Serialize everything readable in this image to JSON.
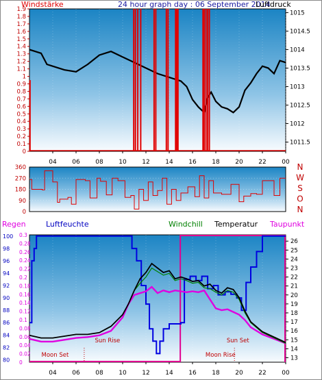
{
  "header": {
    "left": "Windstärke",
    "center": "24 hour graph day : 06 September 2014",
    "right": "Luftdruck"
  },
  "colors": {
    "background": "#ffffff",
    "plot_top": "#1e88c8",
    "plot_bottom": "#f4f8fc",
    "wind_red": "#e00000",
    "pressure_black": "#000000",
    "humidity_blue": "#0000e0",
    "dewpoint_magenta": "#e000e0",
    "windchill_green": "#008000",
    "regen_red": "#e000e0",
    "moon_red": "#c00000"
  },
  "time_axis_labels": [
    "04",
    "06",
    "08",
    "10",
    "12",
    "14",
    "16",
    "18",
    "20",
    "22",
    "00"
  ],
  "chart_data": [
    {
      "type": "line",
      "title": "24 hour graph day : 06 September 2014",
      "left_axis_label": "Windstärke",
      "right_axis_label": "Luftdruck",
      "left_ticks": [
        "0",
        "0.1",
        "0.2",
        "0.3",
        "0.4",
        "0.5",
        "0.6",
        "0.7",
        "0.8",
        "0.9",
        "1",
        "1.1",
        "1.2",
        "1.3",
        "1.4",
        "1.5",
        "1.6",
        "1.7",
        "1.8",
        "1.9"
      ],
      "right_ticks": [
        "1011.5",
        "1012",
        "1012.5",
        "1013",
        "1013.5",
        "1014",
        "1014.5",
        "1015"
      ],
      "left_ylim": [
        0,
        1.9
      ],
      "right_ylim": [
        1011.25,
        1015.1
      ],
      "xlim_hours": [
        2,
        24
      ],
      "series": [
        {
          "name": "Luftdruck",
          "axis": "right",
          "style": "line",
          "x": [
            2,
            3,
            3.5,
            4,
            5,
            6,
            7,
            8,
            9,
            10,
            11,
            12,
            13,
            14,
            15,
            15.5,
            16,
            16.5,
            17,
            17.3,
            17.6,
            18,
            18.5,
            19,
            19.5,
            20,
            20.5,
            21,
            21.5,
            22,
            22.5,
            23,
            23.5,
            24
          ],
          "y": [
            1014,
            1013.9,
            1013.6,
            1013.55,
            1013.45,
            1013.4,
            1013.6,
            1013.85,
            1013.95,
            1013.8,
            1013.65,
            1013.5,
            1013.35,
            1013.25,
            1013.15,
            1013,
            1012.65,
            1012.45,
            1012.3,
            1012.7,
            1012.85,
            1012.6,
            1012.45,
            1012.4,
            1012.3,
            1012.45,
            1012.9,
            1013.1,
            1013.35,
            1013.55,
            1013.5,
            1013.35,
            1013.7,
            1013.65
          ]
        },
        {
          "name": "Windstärke",
          "axis": "left",
          "style": "spikes",
          "x": [
            2.05,
            10.95,
            11.1,
            11.3,
            11.55,
            12.7,
            12.85,
            13.75,
            13.9,
            14.55,
            14.65,
            14.75,
            16.9,
            17.0,
            17.15,
            17.3,
            17.45
          ],
          "y": [
            0.95,
            1.95,
            1.95,
            1.95,
            1.95,
            1.95,
            1.95,
            1.95,
            1.95,
            1.95,
            1.95,
            1.95,
            1.95,
            1.95,
            1.95,
            1.95,
            1.95
          ]
        }
      ]
    },
    {
      "type": "line",
      "title": "",
      "left_ticks": [
        "0",
        "90",
        "180",
        "270",
        "360"
      ],
      "right_labels": [
        "N",
        "W",
        "S",
        "O",
        "N"
      ],
      "ylim": [
        0,
        360
      ],
      "xlim_hours": [
        2,
        24
      ],
      "series": [
        {
          "name": "",
          "style": "step",
          "x": [
            2,
            2.2,
            3.1,
            3.3,
            4.0,
            4.4,
            4.6,
            5.3,
            5.6,
            6.0,
            6.8,
            7.2,
            7.8,
            8.1,
            8.6,
            9.1,
            9.6,
            10.2,
            10.7,
            11.0,
            11.4,
            11.8,
            12.2,
            12.6,
            13.0,
            13.4,
            13.8,
            14.2,
            14.6,
            15.0,
            15.6,
            16.2,
            16.6,
            17.0,
            17.4,
            17.8,
            18.5,
            19.3,
            20.0,
            20.4,
            21.0,
            21.5,
            22.0,
            22.5,
            23.0,
            23.5,
            24
          ],
          "y": [
            260,
            180,
            175,
            330,
            240,
            75,
            100,
            115,
            60,
            260,
            250,
            110,
            270,
            245,
            135,
            270,
            250,
            115,
            130,
            20,
            180,
            90,
            240,
            130,
            170,
            270,
            60,
            180,
            90,
            150,
            200,
            120,
            290,
            110,
            250,
            150,
            140,
            220,
            80,
            125,
            145,
            140,
            250,
            250,
            130,
            270,
            270
          ]
        }
      ]
    },
    {
      "type": "line",
      "title": "",
      "labels": {
        "left1": "Regen",
        "left2": "Luftfeuchte",
        "windchill": "Windchill",
        "temperatur": "Temperatur",
        "taupunkt": "Taupunkt"
      },
      "regen_ticks": [
        "0",
        "0.02",
        "0.04",
        "0.06",
        "0.08",
        "0.1",
        "0.12",
        "0.14",
        "0.16",
        "0.18",
        "0.2",
        "0.22",
        "0.24",
        "0.26",
        "0.28",
        "0.3"
      ],
      "humidity_ticks": [
        "80",
        "82",
        "84",
        "86",
        "88",
        "90",
        "92",
        "94",
        "96",
        "98",
        "100"
      ],
      "temp_ticks": [
        "13",
        "14",
        "15",
        "16",
        "17",
        "18",
        "19",
        "20",
        "21",
        "22",
        "23",
        "24",
        "25",
        "26"
      ],
      "temp_ylim": [
        12.5,
        26.7
      ],
      "humidity_ylim": [
        79.6,
        100.2
      ],
      "xlim_hours": [
        2,
        24
      ],
      "annotations": [
        {
          "text": "Moon Set",
          "x_hour": 4.2
        },
        {
          "text": "Sun Rise",
          "x_hour": 8.7
        },
        {
          "text": "Sun Set",
          "x_hour": 19.9
        },
        {
          "text": "Moon Rise",
          "x_hour": 18.4
        }
      ],
      "series": [
        {
          "name": "Temperatur",
          "axis": "temp",
          "x": [
            2,
            3,
            4,
            5,
            6,
            7,
            8,
            9,
            10,
            10.5,
            11,
            11.5,
            12,
            12.5,
            13,
            13.5,
            14,
            14.5,
            15,
            15.5,
            16,
            16.5,
            17,
            17.5,
            18,
            18.5,
            19,
            19.5,
            20,
            20.5,
            21,
            22,
            23,
            24
          ],
          "y": [
            15.5,
            15.2,
            15.2,
            15.4,
            15.6,
            15.6,
            15.8,
            16.5,
            17.8,
            19,
            20.5,
            21.8,
            22.5,
            23.5,
            23,
            22.5,
            22.7,
            21.8,
            22,
            21.8,
            21.5,
            21.6,
            21,
            21.2,
            20.5,
            20.2,
            20.8,
            20.6,
            19.7,
            18.2,
            17,
            15.9,
            15.3,
            14.7
          ]
        },
        {
          "name": "Windchill",
          "axis": "temp",
          "x": [
            2,
            3,
            4,
            5,
            6,
            7,
            8,
            9,
            10,
            10.5,
            11,
            11.5,
            12,
            12.5,
            13,
            13.5,
            14,
            14.5,
            15,
            15.5,
            16,
            16.5,
            17,
            17.5,
            18,
            18.5,
            19,
            19.5,
            20,
            20.5,
            21,
            22,
            23,
            24
          ],
          "y": [
            15.5,
            15.2,
            15.2,
            15.4,
            15.6,
            15.6,
            15.8,
            16.5,
            17.8,
            19,
            20.5,
            21.3,
            22,
            23,
            22.6,
            22.2,
            22.4,
            21.6,
            21.8,
            21.6,
            21.3,
            21.4,
            20.8,
            20.7,
            20.3,
            20,
            20.5,
            20.3,
            19.5,
            18,
            16.9,
            15.8,
            15.2,
            14.6
          ]
        },
        {
          "name": "Taupunkt",
          "axis": "temp",
          "x": [
            2,
            3,
            4,
            5,
            6,
            7,
            8,
            9,
            10,
            10.5,
            11,
            11.5,
            12,
            12.5,
            13,
            13.5,
            14,
            14.5,
            15,
            15.5,
            16,
            16.5,
            17,
            17.5,
            18,
            18.5,
            19,
            19.5,
            20,
            20.5,
            21,
            22,
            23,
            24
          ],
          "y": [
            15.1,
            14.8,
            14.8,
            15,
            15.2,
            15.3,
            15.5,
            16,
            17.5,
            19,
            20,
            20.2,
            20.4,
            20.9,
            20.2,
            20.5,
            20.3,
            20.5,
            20.4,
            20.3,
            20.4,
            20.3,
            20.5,
            19.5,
            18.5,
            18.3,
            18.4,
            18.1,
            17.8,
            17.2,
            16.4,
            15.6,
            15.1,
            14.6
          ]
        },
        {
          "name": "Luftfeuchte",
          "axis": "humidity",
          "x": [
            2,
            2.2,
            2.4,
            2.6,
            10.5,
            10.8,
            11.2,
            11.6,
            12.0,
            12.3,
            12.6,
            12.9,
            13.2,
            13.5,
            14.0,
            14.6,
            15.0,
            15.3,
            15.8,
            16.3,
            16.8,
            17.3,
            17.8,
            18.2,
            18.8,
            19.3,
            19.8,
            20.2,
            20.6,
            21.0,
            21.5,
            22.0,
            24
          ],
          "y": [
            86,
            96,
            98,
            100,
            100,
            98,
            96,
            92,
            89,
            85,
            83,
            81,
            83,
            85,
            85.8,
            85.8,
            86,
            93,
            93.5,
            92.8,
            93.5,
            91.5,
            92,
            90.5,
            91,
            90.6,
            90,
            88,
            92.5,
            95,
            97.5,
            100,
            100
          ]
        }
      ]
    }
  ]
}
